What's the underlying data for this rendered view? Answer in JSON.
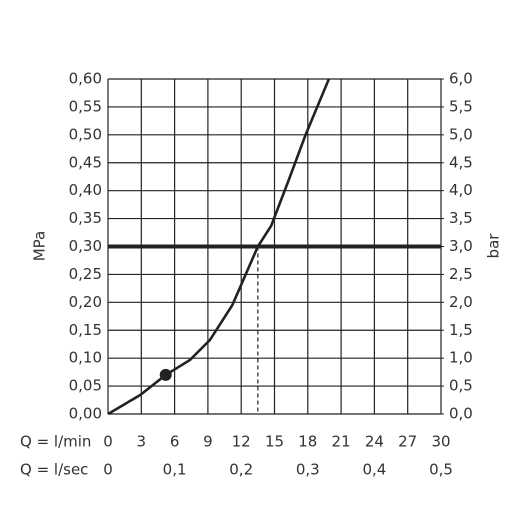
{
  "chart_data": {
    "type": "line",
    "ylabel": "MPa",
    "y2label": "bar",
    "xlabel": "Q = l/min",
    "x2label": "Q = l/sec",
    "x": [
      0,
      2.9,
      5.2,
      7.4,
      9.2,
      11.2,
      13.5,
      14.7,
      16.3,
      17.8,
      19.9
    ],
    "series": [
      {
        "color": "#222222",
        "values": [
          0,
          0.034,
          0.07,
          0.097,
          0.133,
          0.195,
          0.3,
          0.337,
          0.42,
          0.5,
          0.6
        ]
      }
    ],
    "markers": [
      {
        "x": 5.2,
        "y": 0.07
      }
    ],
    "reference_lines": {
      "y": 0.3,
      "x": 13.5
    },
    "xlim": [
      0,
      30
    ],
    "xticks": [
      0,
      3,
      6,
      9,
      12,
      15,
      18,
      21,
      24,
      27,
      30
    ],
    "x2lim": [
      0,
      0.5
    ],
    "x2ticks": [
      0,
      {
        "value": 0.1,
        "label": "0,1"
      },
      {
        "value": 0.2,
        "label": "0,2"
      },
      {
        "value": 0.3,
        "label": "0,3"
      },
      {
        "value": 0.4,
        "label": "0,4"
      },
      {
        "value": 0.5,
        "label": "0,5"
      }
    ],
    "ylim": [
      0,
      0.6
    ],
    "yticks": [
      {
        "value": 0,
        "label": "0,00"
      },
      {
        "value": 0.05,
        "label": "0,05"
      },
      {
        "value": 0.1,
        "label": "0,10"
      },
      {
        "value": 0.15,
        "label": "0,15"
      },
      {
        "value": 0.2,
        "label": "0,20"
      },
      {
        "value": 0.25,
        "label": "0,25"
      },
      {
        "value": 0.3,
        "label": "0,30"
      },
      {
        "value": 0.35,
        "label": "0,35"
      },
      {
        "value": 0.4,
        "label": "0,40"
      },
      {
        "value": 0.45,
        "label": "0,45"
      },
      {
        "value": 0.5,
        "label": "0,50"
      },
      {
        "value": 0.55,
        "label": "0,55"
      },
      {
        "value": 0.6,
        "label": "0,60"
      }
    ],
    "y2lim": [
      0,
      6
    ],
    "y2ticks": [
      {
        "value": 0,
        "label": "0,0"
      },
      {
        "value": 0.5,
        "label": "0,5"
      },
      {
        "value": 1,
        "label": "1,0"
      },
      {
        "value": 1.5,
        "label": "1,5"
      },
      {
        "value": 2,
        "label": "2,0"
      },
      {
        "value": 2.5,
        "label": "2,5"
      },
      {
        "value": 3,
        "label": "3,0"
      },
      {
        "value": 3.5,
        "label": "3,5"
      },
      {
        "value": 4,
        "label": "4,0"
      },
      {
        "value": 4.5,
        "label": "4,5"
      },
      {
        "value": 5,
        "label": "5,0"
      },
      {
        "value": 5.5,
        "label": "5,5"
      },
      {
        "value": 6,
        "label": "6,0"
      }
    ],
    "grid": true
  }
}
